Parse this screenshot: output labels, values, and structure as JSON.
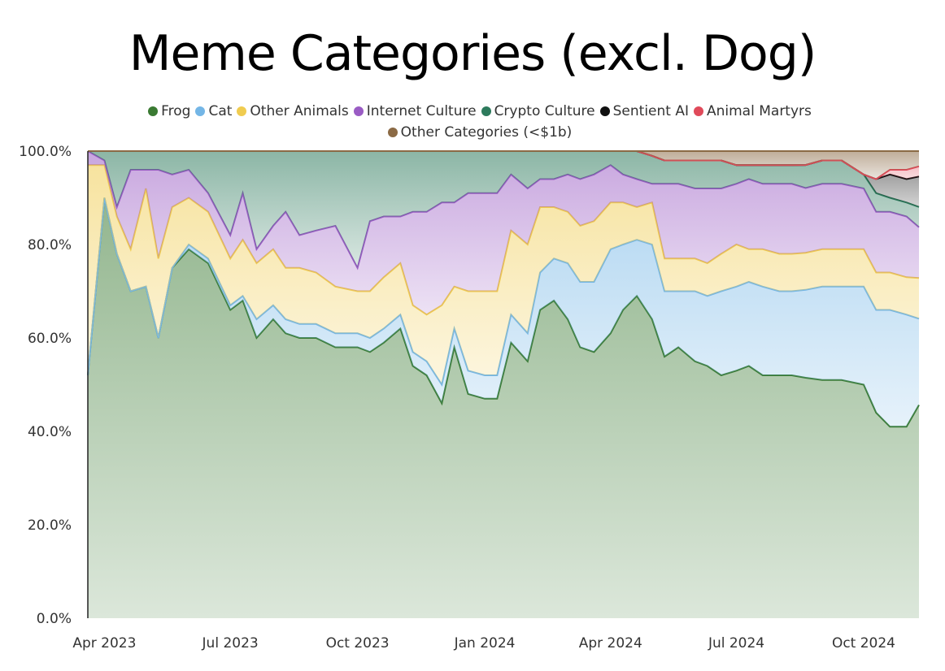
{
  "chart_data": {
    "type": "area",
    "stacked": "100%",
    "title": "Meme Categories (excl. Dog)",
    "x_tick_labels": [
      "Apr 2023",
      "Jul 2023",
      "Oct 2023",
      "Jan 2024",
      "Apr 2024",
      "Jul 2024",
      "Oct 2024"
    ],
    "y_tick_labels": [
      "0.0%",
      "20.0%",
      "40.0%",
      "60.0%",
      "80.0%",
      "100.0%"
    ],
    "ylim": [
      0,
      100
    ],
    "legend_position": "top-center",
    "x": [
      "2023-03-20",
      "2023-04-01",
      "2023-04-10",
      "2023-04-20",
      "2023-05-01",
      "2023-05-10",
      "2023-05-20",
      "2023-06-01",
      "2023-06-15",
      "2023-07-01",
      "2023-07-10",
      "2023-07-20",
      "2023-08-01",
      "2023-08-10",
      "2023-08-20",
      "2023-09-01",
      "2023-09-15",
      "2023-10-01",
      "2023-10-10",
      "2023-10-20",
      "2023-11-01",
      "2023-11-10",
      "2023-11-20",
      "2023-12-01",
      "2023-12-10",
      "2023-12-20",
      "2024-01-01",
      "2024-01-10",
      "2024-01-20",
      "2024-02-01",
      "2024-02-10",
      "2024-02-20",
      "2024-03-01",
      "2024-03-10",
      "2024-03-20",
      "2024-04-01",
      "2024-04-10",
      "2024-04-20",
      "2024-05-01",
      "2024-05-10",
      "2024-05-20",
      "2024-06-01",
      "2024-06-10",
      "2024-06-20",
      "2024-07-01",
      "2024-07-10",
      "2024-07-20",
      "2024-08-01",
      "2024-08-10",
      "2024-08-20",
      "2024-09-01",
      "2024-09-15",
      "2024-10-01",
      "2024-10-10",
      "2024-10-20",
      "2024-11-01",
      "2024-11-10"
    ],
    "series": [
      {
        "name": "Frog",
        "color": "#3a7a32",
        "values": [
          52,
          90,
          78,
          70,
          71,
          60,
          75,
          79,
          76,
          66,
          68,
          60,
          64,
          61,
          60,
          60,
          58,
          58,
          57,
          59,
          62,
          54,
          52,
          46,
          58,
          48,
          47,
          47,
          59,
          55,
          66,
          68,
          64,
          58,
          57,
          61,
          66,
          69,
          64,
          56,
          58,
          55,
          54,
          52,
          53,
          54,
          52,
          52,
          52,
          52,
          51,
          51,
          50,
          44,
          41,
          41,
          42
        ]
      },
      {
        "name": "Cat",
        "color": "#74b6e6",
        "values": [
          0,
          0,
          0,
          0,
          0,
          0,
          0,
          1,
          1,
          1,
          1,
          4,
          3,
          3,
          3,
          3,
          3,
          3,
          3,
          3,
          3,
          3,
          3,
          4,
          4,
          5,
          5,
          5,
          6,
          6,
          8,
          9,
          12,
          14,
          15,
          18,
          14,
          12,
          16,
          14,
          12,
          15,
          15,
          18,
          18,
          18,
          19,
          18,
          18,
          19,
          20,
          20,
          21,
          22,
          25,
          24,
          17
        ]
      },
      {
        "name": "Other Animals",
        "color": "#f0cc50",
        "values": [
          45,
          7,
          8,
          9,
          21,
          17,
          13,
          10,
          10,
          10,
          12,
          12,
          12,
          11,
          12,
          11,
          10,
          9,
          10,
          11,
          11,
          10,
          10,
          17,
          9,
          17,
          18,
          18,
          18,
          19,
          14,
          11,
          11,
          12,
          13,
          10,
          9,
          7,
          9,
          7,
          7,
          7,
          7,
          8,
          9,
          7,
          8,
          8,
          8,
          8,
          8,
          8,
          8,
          8,
          8,
          8,
          8
        ]
      },
      {
        "name": "Internet Culture",
        "color": "#9a5cc4",
        "values": [
          3,
          1,
          2,
          17,
          4,
          19,
          7,
          6,
          4,
          5,
          10,
          3,
          5,
          12,
          7,
          9,
          13,
          5,
          15,
          13,
          10,
          20,
          22,
          22,
          18,
          21,
          21,
          21,
          12,
          12,
          6,
          6,
          8,
          10,
          10,
          8,
          6,
          6,
          4,
          16,
          16,
          15,
          16,
          14,
          13,
          15,
          14,
          15,
          15,
          14,
          14,
          14,
          13,
          13,
          13,
          13,
          10
        ]
      },
      {
        "name": "Crypto Culture",
        "color": "#2d7a5c",
        "values": [
          0,
          2,
          12,
          4,
          4,
          4,
          5,
          4,
          9,
          18,
          9,
          21,
          16,
          13,
          18,
          17,
          16,
          25,
          15,
          14,
          14,
          13,
          13,
          11,
          11,
          9,
          9,
          9,
          5,
          8,
          6,
          6,
          5,
          6,
          5,
          3,
          5,
          6,
          6,
          5,
          5,
          6,
          6,
          6,
          4,
          3,
          4,
          4,
          4,
          5,
          5,
          5,
          3,
          4,
          3,
          3,
          4
        ]
      },
      {
        "name": "Sentient AI",
        "color": "#101010",
        "values": [
          0,
          0,
          0,
          0,
          0,
          0,
          0,
          0,
          0,
          0,
          0,
          0,
          0,
          0,
          0,
          0,
          0,
          0,
          0,
          0,
          0,
          0,
          0,
          0,
          0,
          0,
          0,
          0,
          0,
          0,
          0,
          0,
          0,
          0,
          0,
          0,
          0,
          0,
          0,
          0,
          0,
          0,
          0,
          0,
          0,
          0,
          0,
          0,
          0,
          0,
          0,
          0,
          0,
          3,
          5,
          5,
          6
        ]
      },
      {
        "name": "Animal Martyrs",
        "color": "#e04a5a",
        "values": [
          0,
          0,
          0,
          0,
          0,
          0,
          0,
          0,
          0,
          0,
          0,
          0,
          0,
          0,
          0,
          0,
          0,
          0,
          0,
          0,
          0,
          0,
          0,
          0,
          0,
          0,
          0,
          0,
          0,
          0,
          0,
          0,
          0,
          0,
          0,
          0,
          0,
          0,
          0,
          0,
          0,
          0,
          0,
          0,
          0,
          0,
          0,
          0,
          0,
          0,
          0,
          0,
          0,
          0,
          1,
          2,
          2
        ]
      },
      {
        "name": "Other Categories (<$1b)",
        "color": "#8b6a45",
        "values": [
          0,
          0,
          0,
          0,
          0,
          0,
          0,
          0,
          0,
          0,
          0,
          0,
          0,
          0,
          0,
          0,
          0,
          0,
          0,
          0,
          0,
          0,
          0,
          0,
          0,
          0,
          0,
          0,
          0,
          0,
          0,
          0,
          0,
          0,
          0,
          0,
          0,
          0,
          1,
          2,
          2,
          2,
          2,
          2,
          3,
          3,
          3,
          3,
          3,
          3,
          2,
          2,
          5,
          6,
          4,
          4,
          3
        ]
      }
    ]
  }
}
